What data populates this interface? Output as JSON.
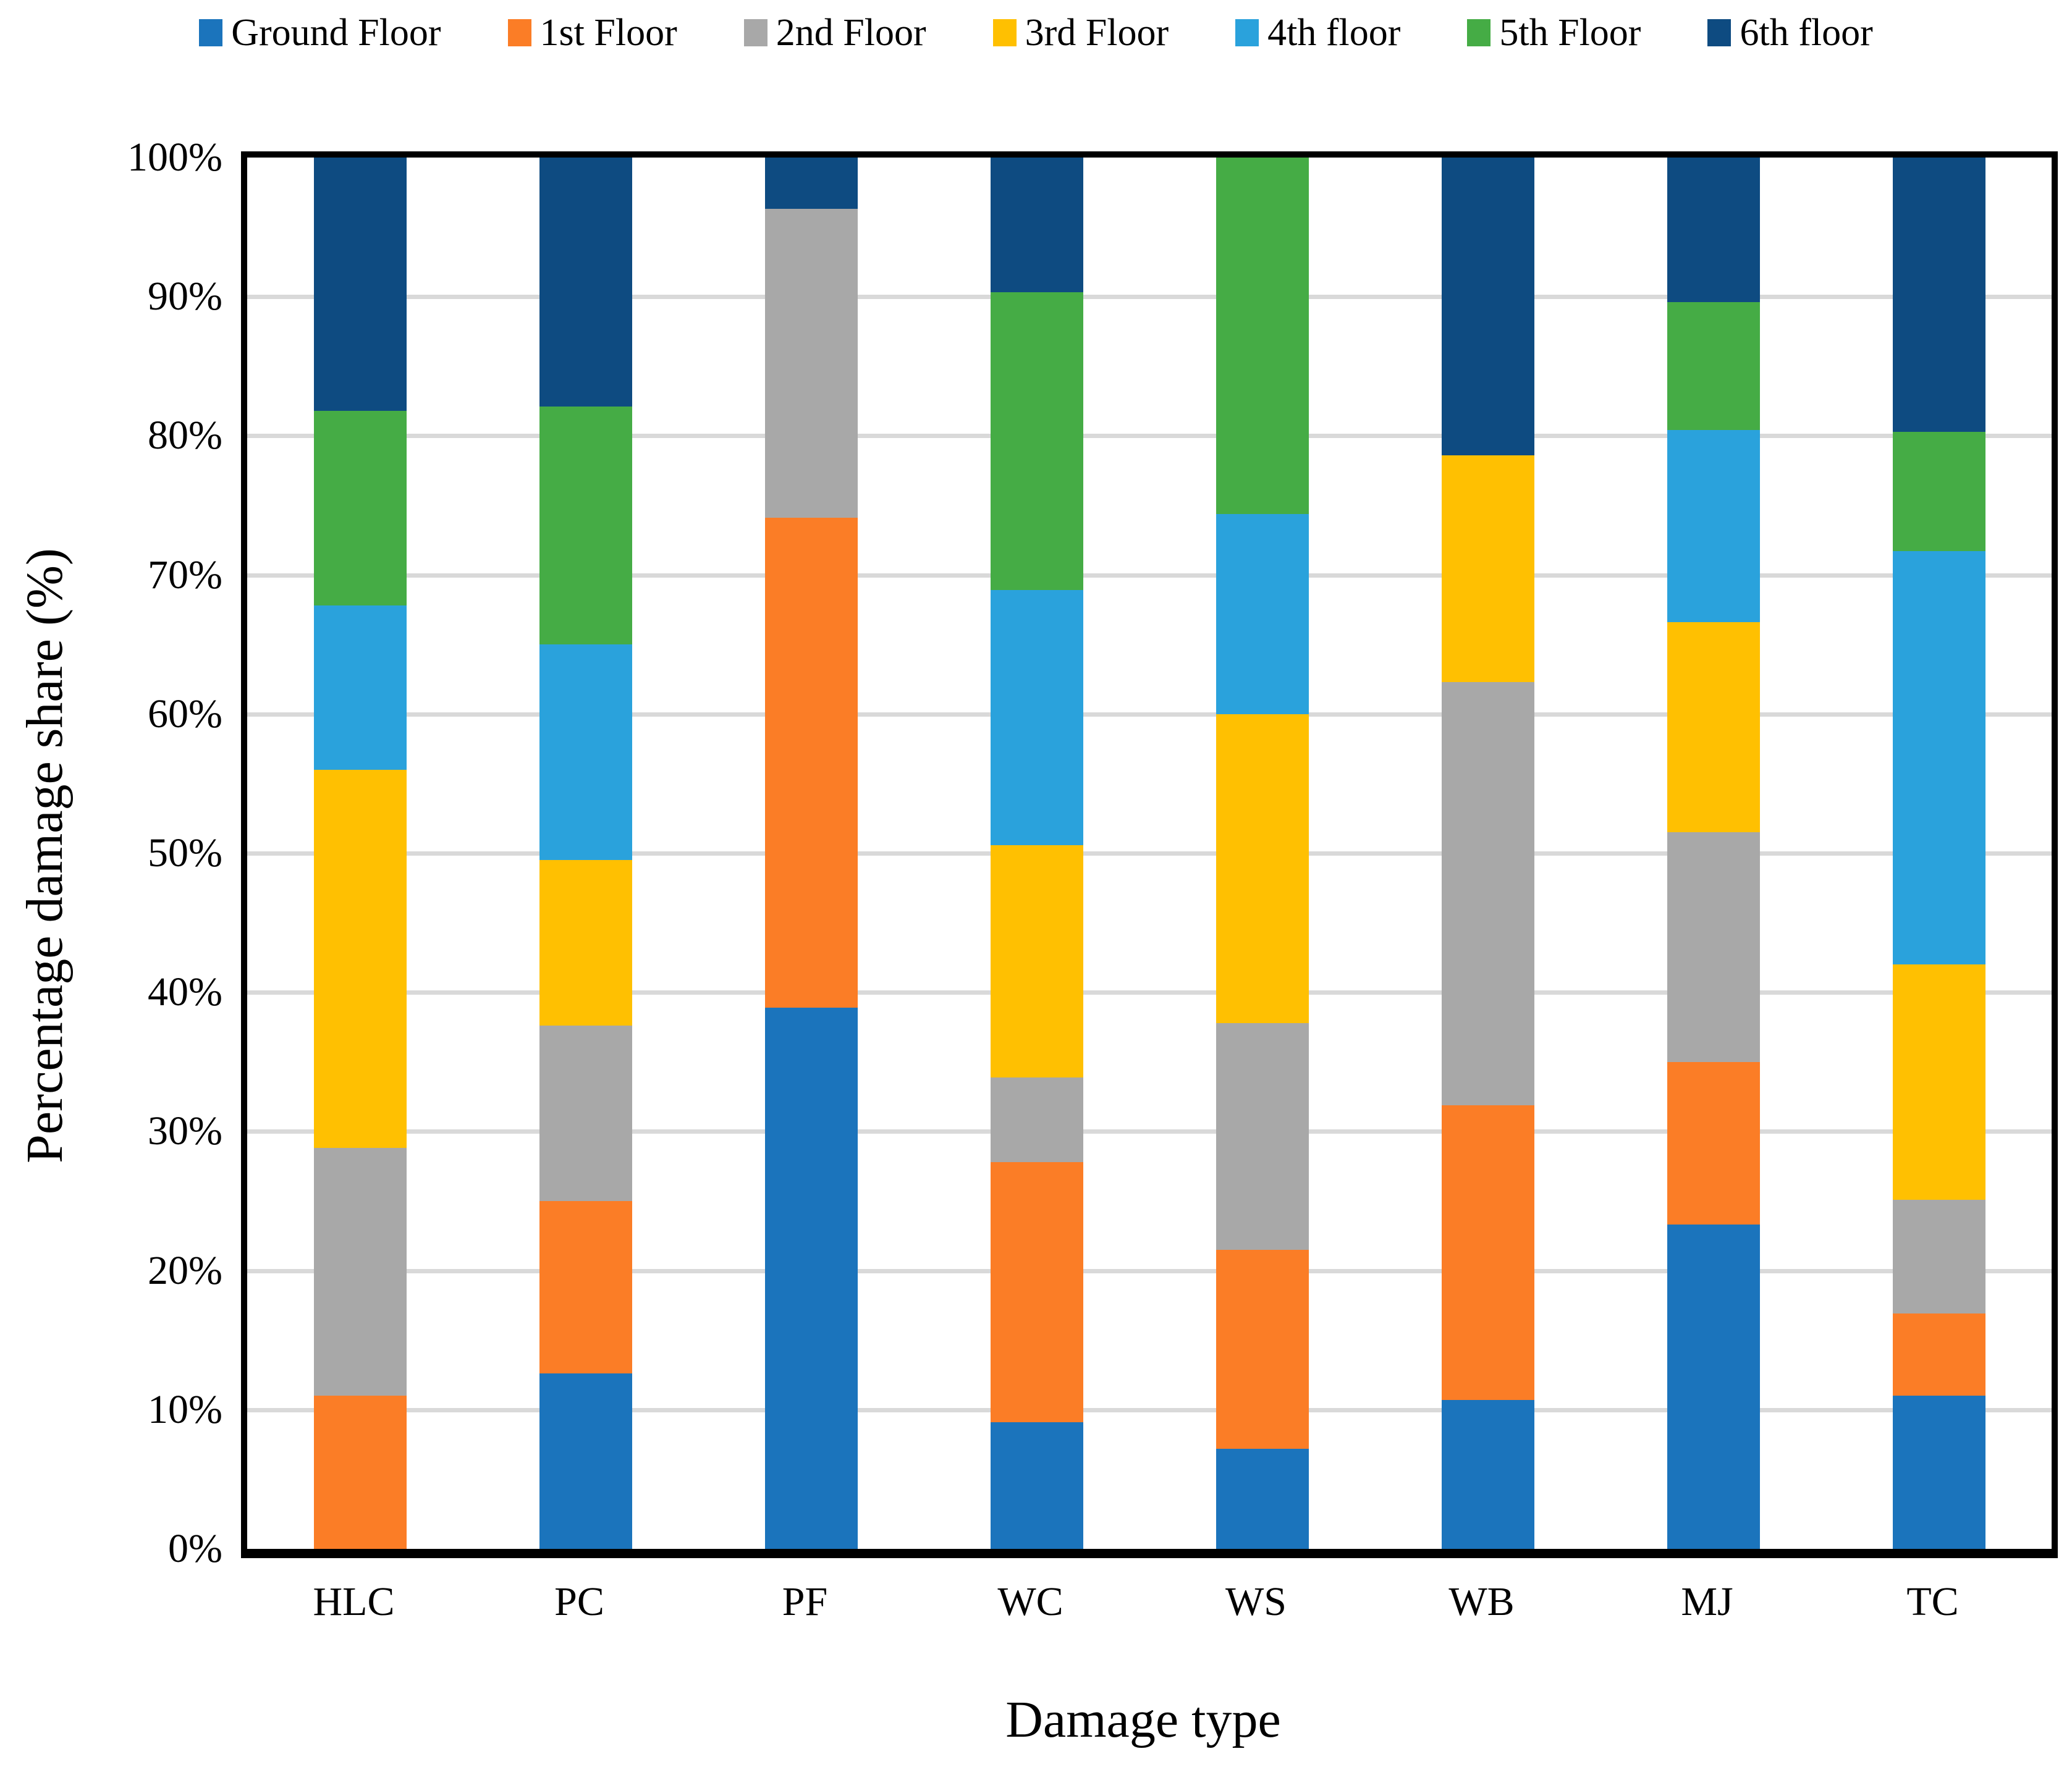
{
  "chart_data": {
    "type": "bar",
    "stacked": true,
    "stack_mode": "percent",
    "title": "",
    "xlabel": "Damage type",
    "ylabel": "Percentage damage share (%)",
    "ylim": [
      0,
      100
    ],
    "ytick_values": [
      0,
      10,
      20,
      30,
      40,
      50,
      60,
      70,
      80,
      90,
      100
    ],
    "ytick_labels": [
      "0%",
      "10%",
      "20%",
      "30%",
      "40%",
      "50%",
      "60%",
      "70%",
      "80%",
      "90%",
      "100%"
    ],
    "grid": "horizontal",
    "grid_color": "#D9D9D9",
    "legend_position": "top",
    "categories": [
      "HLC",
      "PC",
      "PF",
      "WC",
      "WS",
      "WB",
      "MJ",
      "TC"
    ],
    "series": [
      {
        "name": "Ground Floor",
        "color": "#1B74BC",
        "values": [
          0,
          12.6,
          38.9,
          9.1,
          7.2,
          10.7,
          23.3,
          11.0
        ]
      },
      {
        "name": "1st Floor",
        "color": "#FB7D26",
        "values": [
          11.0,
          12.4,
          35.2,
          18.7,
          14.3,
          21.2,
          11.7,
          5.9
        ]
      },
      {
        "name": "2nd Floor",
        "color": "#A8A8A8",
        "values": [
          17.8,
          12.6,
          22.2,
          6.1,
          16.3,
          30.4,
          16.5,
          8.2
        ]
      },
      {
        "name": "3rd Floor",
        "color": "#FFC001",
        "values": [
          27.2,
          11.9,
          0,
          16.7,
          22.2,
          16.3,
          15.1,
          16.9
        ]
      },
      {
        "name": "4th floor",
        "color": "#2AA2DC",
        "values": [
          11.8,
          15.5,
          0,
          18.3,
          14.4,
          0,
          13.8,
          29.7
        ]
      },
      {
        "name": "5th Floor",
        "color": "#45AC45",
        "values": [
          14.0,
          17.1,
          0,
          21.4,
          25.6,
          0,
          9.2,
          8.6
        ]
      },
      {
        "name": "6th floor",
        "color": "#0E4B81",
        "values": [
          18.2,
          17.9,
          3.7,
          9.7,
          0,
          21.4,
          10.4,
          19.7
        ]
      }
    ]
  }
}
